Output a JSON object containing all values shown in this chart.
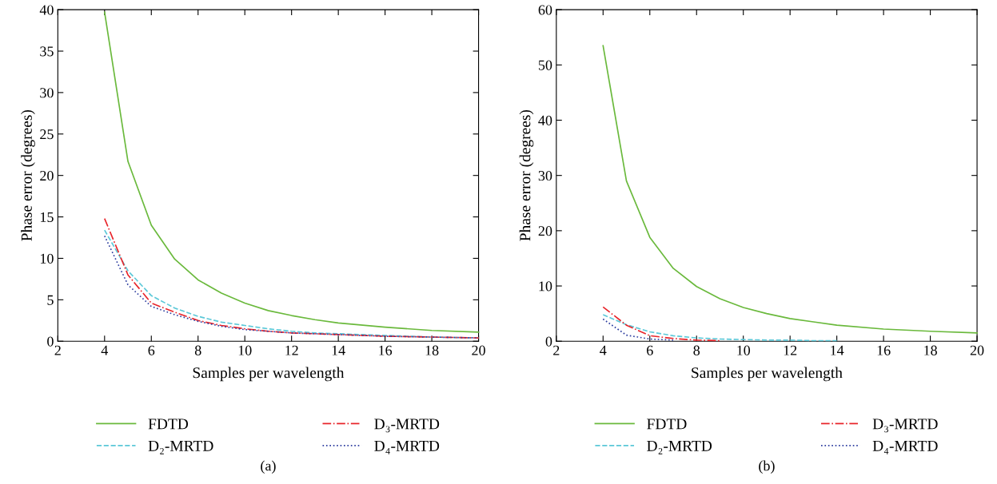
{
  "chart_data": [
    {
      "type": "line",
      "xlabel": "Samples per wavelength",
      "ylabel": "Phase error (degrees)",
      "xlim": [
        2,
        20
      ],
      "ylim": [
        0,
        40
      ],
      "xticks": [
        2,
        4,
        6,
        8,
        10,
        12,
        14,
        16,
        18,
        20
      ],
      "yticks": [
        0,
        5,
        10,
        15,
        20,
        25,
        30,
        35,
        40
      ],
      "grid": false,
      "legend": "bottom",
      "annotations": [
        "(a)"
      ],
      "x": [
        4,
        5,
        6,
        7,
        8,
        9,
        10,
        11,
        12,
        13,
        14,
        16,
        18,
        20
      ],
      "series": [
        {
          "name": "FDTD",
          "color": "#6ab93c",
          "line_style": "solid",
          "values": [
            39.7,
            21.7,
            14.0,
            9.9,
            7.4,
            5.8,
            4.6,
            3.7,
            3.1,
            2.6,
            2.2,
            1.7,
            1.3,
            1.1
          ]
        },
        {
          "name": "D₂-MRTD",
          "color": "#5bc8d8",
          "line_style": "dashed",
          "values": [
            13.4,
            8.5,
            5.5,
            4.0,
            3.0,
            2.3,
            1.9,
            1.5,
            1.2,
            1.0,
            0.9,
            0.7,
            0.5,
            0.4
          ]
        },
        {
          "name": "D₃-MRTD",
          "color": "#e8242a",
          "line_style": "dashdot",
          "values": [
            14.8,
            8.0,
            4.6,
            3.5,
            2.5,
            1.9,
            1.5,
            1.2,
            1.0,
            0.9,
            0.8,
            0.6,
            0.5,
            0.4
          ]
        },
        {
          "name": "D₄-MRTD",
          "color": "#2f3fa0",
          "line_style": "dotted",
          "values": [
            12.7,
            6.8,
            4.2,
            3.2,
            2.4,
            1.8,
            1.4,
            1.2,
            1.0,
            0.9,
            0.8,
            0.6,
            0.5,
            0.4
          ]
        }
      ]
    },
    {
      "type": "line",
      "xlabel": "Samples per wavelength",
      "ylabel": "Phase error (degrees)",
      "xlim": [
        2,
        20
      ],
      "ylim": [
        0,
        60
      ],
      "xticks": [
        2,
        4,
        6,
        8,
        10,
        12,
        14,
        16,
        18,
        20
      ],
      "yticks": [
        0,
        10,
        20,
        30,
        40,
        50,
        60
      ],
      "grid": false,
      "legend": "bottom",
      "annotations": [
        "(b)"
      ],
      "x": [
        4,
        5,
        6,
        7,
        8,
        9,
        10,
        11,
        12,
        13,
        14,
        16,
        18,
        20
      ],
      "series": [
        {
          "name": "FDTD",
          "color": "#6ab93c",
          "line_style": "solid",
          "values": [
            53.5,
            29.0,
            18.8,
            13.2,
            9.9,
            7.7,
            6.1,
            5.0,
            4.1,
            3.5,
            2.9,
            2.2,
            1.8,
            1.5
          ]
        },
        {
          "name": "D₂-MRTD",
          "color": "#5bc8d8",
          "line_style": "dashed",
          "values": [
            4.8,
            3.0,
            1.7,
            1.0,
            0.6,
            0.4,
            0.3,
            0.2,
            0.2,
            0.1,
            0.1,
            null,
            null,
            null
          ]
        },
        {
          "name": "D₃-MRTD",
          "color": "#e8242a",
          "line_style": "dashdot",
          "values": [
            6.2,
            2.9,
            1.0,
            0.5,
            0.2,
            0.1,
            null,
            null,
            null,
            null,
            null,
            null,
            null,
            null
          ]
        },
        {
          "name": "D₄-MRTD",
          "color": "#2f3fa0",
          "line_style": "dotted",
          "values": [
            4.0,
            1.1,
            0.4,
            0.2,
            null,
            null,
            null,
            null,
            null,
            null,
            null,
            null,
            null,
            null
          ]
        }
      ]
    }
  ]
}
